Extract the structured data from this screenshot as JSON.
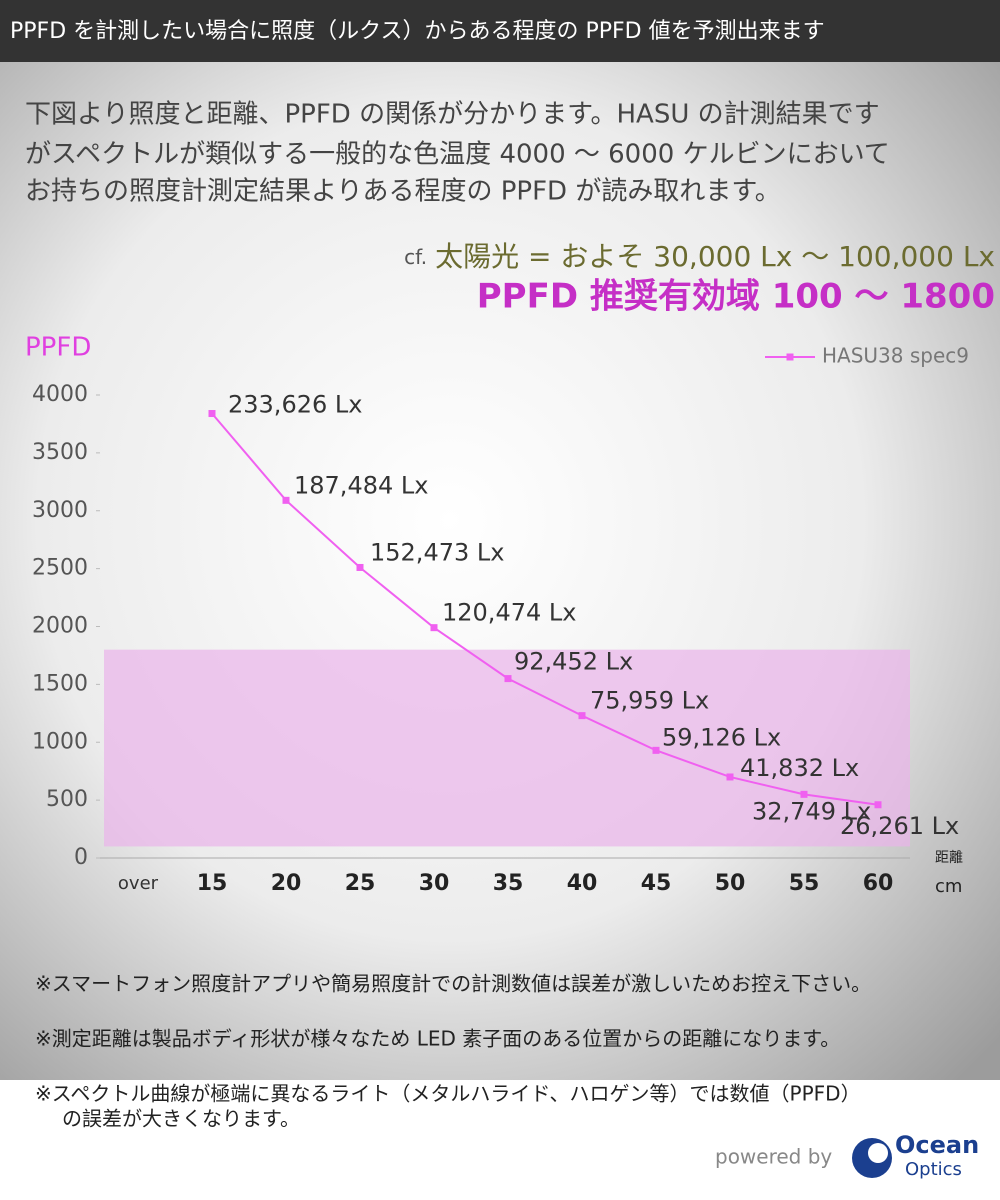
{
  "header": "PPFD を計測したい場合に照度（ルクス）からある程度の PPFD 値を予測出来ます",
  "intro": [
    "下図より照度と距離、PPFD の関係が分かります。HASU の計測結果です",
    "がスペクトルが類似する一般的な色温度 4000 ～ 6000 ケルビンにおいて",
    "お持ちの照度計測定結果よりある程度の PPFD が読み取れます。"
  ],
  "reference": {
    "prefix": "cf.",
    "text": "太陽光 = およそ 30,000 Lx ～ 100,000 Lx"
  },
  "recommended": "PPFD 推奨有効域 100 ～ 1800",
  "chart_data": {
    "type": "line",
    "y_label": "PPFD",
    "x_label": "距離",
    "x_unit": "cm",
    "categories": [
      "over",
      "15",
      "20",
      "25",
      "30",
      "35",
      "40",
      "45",
      "50",
      "55",
      "60"
    ],
    "series": [
      {
        "name": "HASU38 spec9",
        "color": "#f060f0",
        "values": [
          null,
          3840,
          3090,
          2510,
          1990,
          1550,
          1230,
          930,
          700,
          550,
          460
        ],
        "lux_labels": [
          null,
          "233,626 Lx",
          "187,484 Lx",
          "152,473 Lx",
          "120,474 Lx",
          "92,452 Lx",
          "75,959 Lx",
          "59,126 Lx",
          "41,832 Lx",
          "32,749 Lx",
          "26,261 Lx"
        ]
      }
    ],
    "ylim": [
      0,
      4000
    ],
    "yticks": [
      0,
      500,
      1000,
      1500,
      2000,
      2500,
      3000,
      3500,
      4000
    ],
    "band": [
      100,
      1800
    ],
    "band_color": "#e9b4e9",
    "grid": false,
    "legend": "top-right"
  },
  "notes": [
    [
      "※スマートフォン照度計アプリや簡易照度計での計測数値は誤差が激しいためお控え下さい。"
    ],
    [
      "※測定距離は製品ボディ形状が様々なため LED 素子面のある位置からの距離になります。"
    ],
    [
      "※スペクトル曲線が極端に異なるライト（メタルハライド、ハロゲン等）では数値（PPFD）",
      "の誤差が大きくなります。"
    ]
  ],
  "footer": {
    "powered_by": "powered by",
    "logo_top": "Ocean",
    "logo_bottom": "Optics"
  }
}
